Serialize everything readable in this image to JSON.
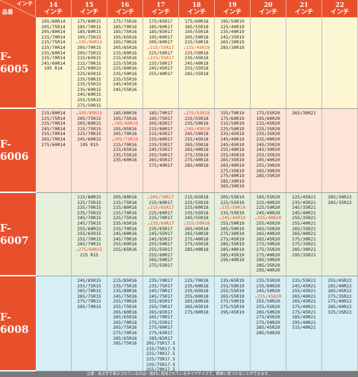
{
  "header": {
    "corner_inch": "インチ",
    "corner_product": "品番",
    "columns": [
      {
        "num": "14",
        "unit": "インチ"
      },
      {
        "num": "15",
        "unit": "インチ"
      },
      {
        "num": "16",
        "unit": "インチ"
      },
      {
        "num": "17",
        "unit": "インチ"
      },
      {
        "num": "18",
        "unit": "インチ"
      },
      {
        "num": "19",
        "unit": "インチ"
      },
      {
        "num": "20",
        "unit": "インチ"
      },
      {
        "num": "21",
        "unit": "インチ"
      },
      {
        "num": "22",
        "unit": "インチ"
      }
    ]
  },
  "colors": {
    "header": "#e8502c",
    "row_F6005": "#fdf6d3",
    "row_F6006": "#fde4d6",
    "row_F6007": "#e6efd9",
    "row_F6008": "#d5eff5",
    "highlight": "#e0432a"
  },
  "rows": [
    {
      "code": "F-6005",
      "cells": [
        [
          {
            "t": "195/80R14"
          },
          {
            "t": "205/75R14"
          },
          {
            "t": "205/80R14"
          },
          {
            "t": "215/70R14"
          },
          {
            "t": "215/75R14"
          },
          {
            "t": "225/70R14"
          },
          {
            "t": "235/60R14"
          },
          {
            "t": "235/70R14"
          },
          {
            "t": "245/60R14"
          },
          {
            "t": "195 R14"
          }
        ],
        [
          {
            "t": "175/80R15"
          },
          {
            "t": "185/70R15"
          },
          {
            "t": "185/80R15"
          },
          {
            "t": "195/75R15"
          },
          {
            "t": "195/80R15",
            "r": true
          },
          {
            "t": "205/70R15"
          },
          {
            "t": "205/75R15"
          },
          {
            "t": "215/65R15"
          },
          {
            "t": "215/70R15"
          },
          {
            "t": "225/60R15"
          },
          {
            "t": "225/65R15"
          },
          {
            "t": "235/50R15"
          },
          {
            "t": "235/55R15"
          },
          {
            "t": "235/60R15"
          },
          {
            "t": "245/60R15"
          },
          {
            "t": "255/55R15"
          },
          {
            "t": "275/50R15"
          }
        ],
        [
          {
            "t": "175/75R16"
          },
          {
            "t": "185/70R16"
          },
          {
            "t": "185/75R16"
          },
          {
            "t": "195/65R16"
          },
          {
            "t": "195/70R16"
          },
          {
            "t": "205/65R16"
          },
          {
            "t": "215/60R16"
          },
          {
            "t": "215/65R16"
          },
          {
            "t": "225/55R16"
          },
          {
            "t": "225/60R16"
          },
          {
            "t": "235/50R16"
          },
          {
            "t": "235/55R16"
          },
          {
            "t": "245/45R16"
          },
          {
            "t": "245/55R16"
          }
        ],
        [
          {
            "t": "175/65R17"
          },
          {
            "t": "185/60R17"
          },
          {
            "t": "185/65R17"
          },
          {
            "t": "195/60R17"
          },
          {
            "t": "205/60R17"
          },
          {
            "t": "215/55R17",
            "r": true
          },
          {
            "t": "225/50R17"
          },
          {
            "t": "225/55R17",
            "r": true
          },
          {
            "t": "235/50R17"
          },
          {
            "t": "245/45R17"
          },
          {
            "t": "255/40R17"
          }
        ],
        [
          {
            "t": "175/60R18"
          },
          {
            "t": "185/55R18"
          },
          {
            "t": "195/55R18"
          },
          {
            "t": "205/50R18"
          },
          {
            "t": "215/50R18"
          },
          {
            "t": "225/45R18",
            "r": true
          },
          {
            "t": "225/50R18"
          },
          {
            "t": "235/45R18"
          },
          {
            "t": "245/40R18"
          },
          {
            "t": "255/35R18"
          },
          {
            "t": "285/35R18"
          }
        ],
        [
          {
            "t": "195/50R19"
          },
          {
            "t": "225/40R19"
          },
          {
            "t": "235/40R19"
          },
          {
            "t": "245/35R19"
          },
          {
            "t": "265/30R19"
          },
          {
            "t": "285/30R19"
          }
        ],
        [],
        [],
        []
      ]
    },
    {
      "code": "F-6006",
      "cells": [
        [
          {
            "t": "215/80R14"
          },
          {
            "t": "225/75R14"
          },
          {
            "t": "235/70R14"
          },
          {
            "t": "245/70R14"
          },
          {
            "t": "255/70R14"
          },
          {
            "t": "265/70R14"
          },
          {
            "t": "275/60R14"
          }
        ],
        [
          {
            "t": "195/85R15",
            "r": true
          },
          {
            "t": "205/75R15"
          },
          {
            "t": "205/80R15"
          },
          {
            "t": "215/75R15"
          },
          {
            "t": "225/70R15"
          },
          {
            "t": "245/60R15"
          },
          {
            "t": "195 R15"
          }
        ],
        [
          {
            "t": "185/80R16"
          },
          {
            "t": "195/75R16"
          },
          {
            "t": "195/80R16",
            "r": true
          },
          {
            "t": "195/85R16"
          },
          {
            "t": "205/70R16"
          },
          {
            "t": "205/75R16",
            "r": true
          },
          {
            "t": "215/70R16"
          },
          {
            "t": "225/65R16"
          },
          {
            "t": "235/55R16"
          },
          {
            "t": "235/60R16"
          }
        ],
        [
          {
            "t": "185/70R17"
          },
          {
            "t": "195/75R17"
          },
          {
            "t": "205/65R17"
          },
          {
            "t": "215/60R17"
          },
          {
            "t": "215/65R17"
          },
          {
            "t": "225/60R17"
          },
          {
            "t": "235/55R17"
          },
          {
            "t": "245/55R17"
          },
          {
            "t": "255/50R17"
          },
          {
            "t": "265/45R17"
          },
          {
            "t": "275/40R17"
          }
        ],
        [
          {
            "t": "215/55R18",
            "r": true
          },
          {
            "t": "225/55R18"
          },
          {
            "t": "235/50R18"
          },
          {
            "t": "245/45R18",
            "r": true
          },
          {
            "t": "245/50R18"
          },
          {
            "t": "255/45R18"
          },
          {
            "t": "265/35R18"
          },
          {
            "t": "265/40R18"
          },
          {
            "t": "275/35R18"
          },
          {
            "t": "275/40R18"
          },
          {
            "t": "285/40R18"
          }
        ],
        [
          {
            "t": "155/70R19"
          },
          {
            "t": "175/60R19"
          },
          {
            "t": "215/50R19"
          },
          {
            "t": "225/50R19"
          },
          {
            "t": "235/45R19"
          },
          {
            "t": "245/40R19"
          },
          {
            "t": "245/45R19"
          },
          {
            "t": "255/40R19"
          },
          {
            "t": "255/45R19"
          },
          {
            "t": "265/35R19"
          },
          {
            "t": "265/40R19"
          },
          {
            "t": "275/35R19"
          },
          {
            "t": "275/40R19"
          },
          {
            "t": "285/30R19"
          },
          {
            "t": "265/30R19"
          }
        ],
        [
          {
            "t": "175/55R20"
          },
          {
            "t": "195/60R20"
          },
          {
            "t": "215/45R20"
          },
          {
            "t": "225/35R20"
          },
          {
            "t": "235/35R20"
          },
          {
            "t": "235/40R20"
          },
          {
            "t": "245/35R20"
          },
          {
            "t": "245/30R20"
          },
          {
            "t": "255/35R20"
          },
          {
            "t": "245/40R20"
          },
          {
            "t": "255/30R20"
          },
          {
            "t": "265/30R20"
          },
          {
            "t": "285/35R20"
          }
        ],
        [
          {
            "t": "265/30R21"
          }
        ],
        []
      ]
    },
    {
      "code": "F-6007",
      "cells": [
        [],
        [
          {
            "t": "215/80R15"
          },
          {
            "t": "225/75R15"
          },
          {
            "t": "235/70R15"
          },
          {
            "t": "235/75R15"
          },
          {
            "t": "245/70R15"
          },
          {
            "t": "245/75R15"
          },
          {
            "t": "255/60R15"
          },
          {
            "t": "255/65R15"
          },
          {
            "t": "255/70R15"
          },
          {
            "t": "265/70R15"
          },
          {
            "t": "275/60R15",
            "r": true
          },
          {
            "t": "215 R15"
          }
        ],
        [
          {
            "t": "205/80R16"
          },
          {
            "t": "215/75R16"
          },
          {
            "t": "215/80R16"
          },
          {
            "t": "225/70R16"
          },
          {
            "t": "225/75R16"
          },
          {
            "t": "235/65R16"
          },
          {
            "t": "235/70R16"
          },
          {
            "t": "245/60R16"
          },
          {
            "t": "245/70R16"
          },
          {
            "t": "255/60R16"
          },
          {
            "t": "255/65R16"
          }
        ],
        [
          {
            "t": "205/70R17",
            "r": true
          },
          {
            "t": "215/60R17"
          },
          {
            "t": "215/65R17",
            "r": true
          },
          {
            "t": "225/60R17"
          },
          {
            "t": "225/70R17"
          },
          {
            "t": "235/60R17",
            "r": true
          },
          {
            "t": "235/65R17"
          },
          {
            "t": "245/55R17"
          },
          {
            "t": "245/65R17"
          },
          {
            "t": "255/50R17"
          },
          {
            "t": "255/55R17"
          },
          {
            "t": "255/60R17"
          },
          {
            "t": "265/50R17"
          },
          {
            "t": "275/55R17"
          }
        ],
        [
          {
            "t": "215/65R18"
          },
          {
            "t": "225/55R18"
          },
          {
            "t": "225/60R18"
          },
          {
            "t": "235/55R18"
          },
          {
            "t": "245/55R18"
          },
          {
            "t": "255/50R18",
            "r": true
          },
          {
            "t": "265/45R18"
          },
          {
            "t": "265/50R18"
          },
          {
            "t": "275/40R18"
          },
          {
            "t": "275/45R18"
          },
          {
            "t": "285/40R18"
          }
        ],
        [
          {
            "t": "205/55R19"
          },
          {
            "t": "225/55R19"
          },
          {
            "t": "235/50R19",
            "r": true
          },
          {
            "t": "235/55R19"
          },
          {
            "t": "245/45R19",
            "r": true
          },
          {
            "t": "255/50R19"
          },
          {
            "t": "265/50R19"
          },
          {
            "t": "275/30R19"
          },
          {
            "t": "275/45R19"
          },
          {
            "t": "285/35R19"
          },
          {
            "t": "285/40R19"
          },
          {
            "t": "285/45R19"
          },
          {
            "t": "295/40R19"
          }
        ],
        [
          {
            "t": "195/55R20"
          },
          {
            "t": "225/40R20"
          },
          {
            "t": "225/50R20"
          },
          {
            "t": "245/40R20"
          },
          {
            "t": "255/40R20",
            "r": true
          },
          {
            "t": "255/45R20"
          },
          {
            "t": "265/35R20"
          },
          {
            "t": "265/40R20"
          },
          {
            "t": "265/45R20"
          },
          {
            "t": "275/30R20"
          },
          {
            "t": "275/35R20"
          },
          {
            "t": "275/40R20"
          },
          {
            "t": "285/30R20"
          },
          {
            "t": "285/35R20"
          },
          {
            "t": "295/40R20"
          }
        ],
        [
          {
            "t": "225/45R21"
          },
          {
            "t": "235/45R21"
          },
          {
            "t": "245/35R21"
          },
          {
            "t": "245/40R21"
          },
          {
            "t": "255/35R21"
          },
          {
            "t": "255/40R21"
          },
          {
            "t": "265/35R21"
          },
          {
            "t": "265/40R21"
          },
          {
            "t": "275/30R21"
          },
          {
            "t": "275/35R21"
          },
          {
            "t": "285/30R21"
          },
          {
            "t": "295/35R21"
          }
        ],
        [
          {
            "t": "265/30R22"
          },
          {
            "t": "265/35R22"
          }
        ]
      ]
    },
    {
      "code": "F-6008",
      "cells": [
        [],
        [
          {
            "t": "245/85R15"
          },
          {
            "t": "255/75R15"
          },
          {
            "t": "265/70R15"
          },
          {
            "t": "265/75R15"
          },
          {
            "t": "275/70R15"
          },
          {
            "t": "285/70R15"
          }
        ],
        [
          {
            "t": "215/85R16"
          },
          {
            "t": "235/75R16"
          },
          {
            "t": "235/80R16"
          },
          {
            "t": "245/75R16"
          },
          {
            "t": "255/70R16"
          },
          {
            "t": "255/75R16"
          },
          {
            "t": "265/60R16"
          },
          {
            "t": "265/65R16"
          },
          {
            "t": "265/70R16"
          },
          {
            "t": "265/75R16"
          },
          {
            "t": "275/70R16"
          },
          {
            "t": "285/65R16"
          },
          {
            "t": "285/75R16"
          }
        ],
        [
          {
            "t": "235/70R17"
          },
          {
            "t": "235/75R17"
          },
          {
            "t": "245/70R17"
          },
          {
            "t": "245/75R17"
          },
          {
            "t": "255/65R17"
          },
          {
            "t": "255/70R17"
          },
          {
            "t": "265/65R17"
          },
          {
            "t": "265/70R17"
          },
          {
            "t": "275/55R17"
          },
          {
            "t": "275/60R17"
          },
          {
            "t": "275/65R17"
          },
          {
            "t": "285/65R17"
          },
          {
            "t": "205/75R17.5"
          },
          {
            "t": "215/75R17.5"
          },
          {
            "t": "225/70R17.5"
          },
          {
            "t": "225/75R17.5"
          },
          {
            "t": "235/75R17.5"
          },
          {
            "t": "255/70R17.5"
          }
        ],
        [
          {
            "t": "225/70R18"
          },
          {
            "t": "235/60R18"
          },
          {
            "t": "235/65R18"
          },
          {
            "t": "255/60R18"
          },
          {
            "t": "265/60R18"
          },
          {
            "t": "265/65R18"
          },
          {
            "t": "275/60R18"
          }
        ],
        [
          {
            "t": "235/65R19"
          },
          {
            "t": "255/50R19"
          },
          {
            "t": "255/55R19"
          },
          {
            "t": "265/55R19"
          },
          {
            "t": "275/50R19"
          },
          {
            "t": "275/55R19"
          },
          {
            "t": "295/45R19"
          }
        ],
        [
          {
            "t": "235/55R20"
          },
          {
            "t": "235/60R20"
          },
          {
            "t": "245/50R20"
          },
          {
            "t": "255/45R20",
            "r": true
          },
          {
            "t": "255/50R20"
          },
          {
            "t": "255/55R20"
          },
          {
            "t": "265/50R20"
          },
          {
            "t": "275/45R20"
          },
          {
            "t": "275/50R20"
          },
          {
            "t": "285/45R20"
          },
          {
            "t": "285/50R20"
          }
        ],
        [
          {
            "t": "235/55R21"
          },
          {
            "t": "245/45R21"
          },
          {
            "t": "255/45R21"
          },
          {
            "t": "265/40R21"
          },
          {
            "t": "265/45R21"
          },
          {
            "t": "275/40R21"
          },
          {
            "t": "275/45R21"
          },
          {
            "t": "285/40R21"
          },
          {
            "t": "295/40R21"
          },
          {
            "t": "315/40R21"
          }
        ],
        [
          {
            "t": "255/45R22"
          },
          {
            "t": "265/40R22"
          },
          {
            "t": "265/45R22"
          },
          {
            "t": "275/35R22"
          },
          {
            "t": "275/40R22"
          },
          {
            "t": "285/40R22"
          },
          {
            "t": "325/35R22"
          }
        ]
      ]
    }
  ],
  "footnote": "注意：赤文字で表示されているのは一般的に使用されているタイヤサイズで、簡単に見つけることができます。"
}
